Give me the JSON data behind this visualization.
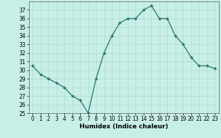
{
  "x": [
    0,
    1,
    2,
    3,
    4,
    5,
    6,
    7,
    8,
    9,
    10,
    11,
    12,
    13,
    14,
    15,
    16,
    17,
    18,
    19,
    20,
    21,
    22,
    23
  ],
  "y": [
    30.5,
    29.5,
    29.0,
    28.5,
    28.0,
    27.0,
    26.5,
    25.0,
    29.0,
    32.0,
    34.0,
    35.5,
    36.0,
    36.0,
    37.0,
    37.5,
    36.0,
    36.0,
    34.0,
    33.0,
    31.5,
    30.5,
    30.5,
    30.2
  ],
  "line_color": "#2e7d6e",
  "marker": "D",
  "marker_size": 2,
  "bg_color": "#c8eee8",
  "grid_color": "#b0d8d0",
  "xlabel": "Humidex (Indice chaleur)",
  "xlim": [
    -0.5,
    23.5
  ],
  "ylim": [
    25,
    38
  ],
  "yticks": [
    25,
    26,
    27,
    28,
    29,
    30,
    31,
    32,
    33,
    34,
    35,
    36,
    37
  ],
  "xticks": [
    0,
    1,
    2,
    3,
    4,
    5,
    6,
    7,
    8,
    9,
    10,
    11,
    12,
    13,
    14,
    15,
    16,
    17,
    18,
    19,
    20,
    21,
    22,
    23
  ],
  "xlabel_fontsize": 6.5,
  "tick_fontsize": 5.5,
  "linewidth": 1.0
}
